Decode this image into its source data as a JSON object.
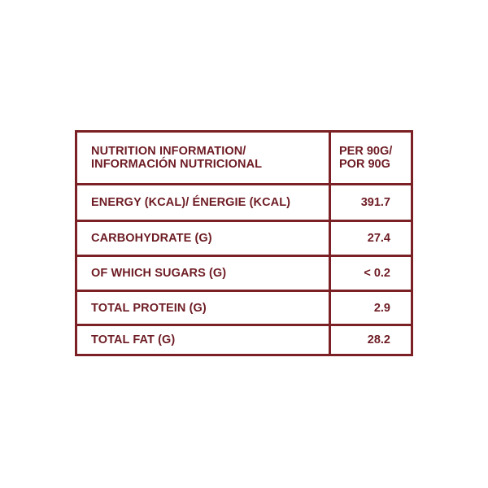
{
  "table": {
    "header": {
      "label_line1": "NUTRITION INFORMATION/",
      "label_line2": "INFORMACIÓN NUTRICIONAL",
      "value_line1": "PER 90G/",
      "value_line2": "POR 90G"
    },
    "rows": [
      {
        "label": "ENERGY (KCAL)/ ÉNERGIE (KCAL)",
        "value": "391.7"
      },
      {
        "label": "CARBOHYDRATE (G)",
        "value": "27.4"
      },
      {
        "label": "OF WHICH SUGARS (G)",
        "value": "< 0.2"
      },
      {
        "label": "TOTAL PROTEIN (G)",
        "value": "2.9"
      },
      {
        "label": "TOTAL FAT (G)",
        "value": "28.2"
      }
    ]
  },
  "colors": {
    "border": "#7b2024",
    "text": "#6e1c24",
    "background": "#ffffff"
  }
}
